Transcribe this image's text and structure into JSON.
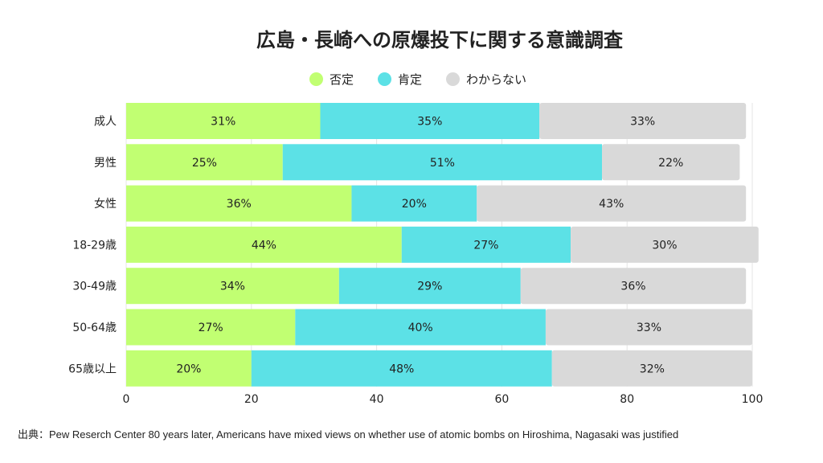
{
  "chart_data": {
    "type": "bar",
    "orientation": "horizontal",
    "stacked": true,
    "title": "広島・長崎への原爆投下に関する意識調査",
    "categories": [
      "成人",
      "男性",
      "女性",
      "18-29歳",
      "30-49歳",
      "50-64歳",
      "65歳以上"
    ],
    "series": [
      {
        "name": "否定",
        "color": "#C1FF72",
        "values": [
          31,
          25,
          36,
          44,
          34,
          27,
          20
        ]
      },
      {
        "name": "肯定",
        "color": "#5CE1E6",
        "values": [
          35,
          51,
          20,
          27,
          29,
          40,
          48
        ]
      },
      {
        "name": "わからない",
        "color": "#D9D9D9",
        "values": [
          33,
          22,
          43,
          30,
          36,
          33,
          32
        ]
      }
    ],
    "xlim": [
      0,
      100
    ],
    "xticks": [
      0,
      20,
      40,
      60,
      80,
      100
    ],
    "xlabel": "",
    "ylabel": "",
    "value_suffix": "%",
    "legend_position": "top-center",
    "grid": true
  },
  "source": "出典：Pew Reserch Center 80 years later, Americans have mixed views on whether use of atomic bombs on Hiroshima, Nagasaki was justified"
}
